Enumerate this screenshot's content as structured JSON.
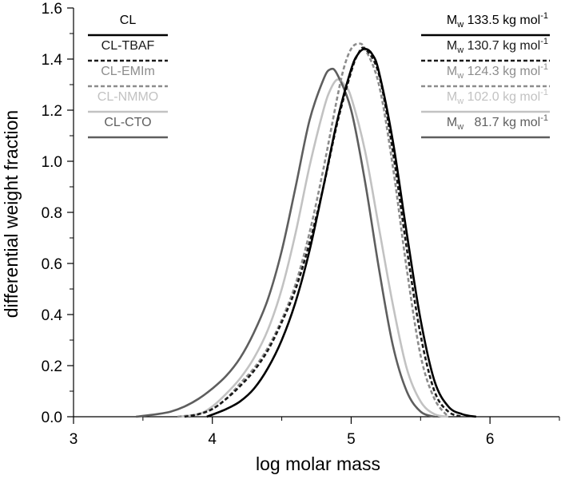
{
  "chart_data": {
    "type": "line",
    "title": "",
    "xlabel": "log molar mass",
    "ylabel": "differential weight fraction",
    "xlim": [
      3,
      6.5
    ],
    "ylim": [
      0,
      1.6
    ],
    "x_ticks": [
      3,
      4,
      5,
      6
    ],
    "x_tick_labels": [
      "3",
      "4",
      "5",
      "6"
    ],
    "y_ticks": [
      0,
      0.2,
      0.4,
      0.6,
      0.8,
      1.0,
      1.2,
      1.4,
      1.6
    ],
    "y_tick_labels": [
      "0.0",
      "0.2",
      "0.4",
      "0.6",
      "0.8",
      "1.0",
      "1.2",
      "1.4",
      "1.6"
    ],
    "grid": false,
    "legend_position": "top-left and top-right",
    "series": [
      {
        "name": "CL",
        "mw_label": "Mw 133.5 kg mol-1",
        "mw_value": "133.5",
        "color": "#000000",
        "dash": "solid",
        "x": [
          3.96,
          4.1,
          4.2,
          4.3,
          4.4,
          4.5,
          4.6,
          4.7,
          4.8,
          4.9,
          5.0,
          5.05,
          5.1,
          5.15,
          5.2,
          5.3,
          5.4,
          5.5,
          5.6,
          5.7,
          5.8,
          5.9
        ],
        "y": [
          0.0,
          0.03,
          0.06,
          0.11,
          0.19,
          0.3,
          0.45,
          0.65,
          0.9,
          1.16,
          1.36,
          1.42,
          1.44,
          1.42,
          1.35,
          1.08,
          0.72,
          0.38,
          0.14,
          0.04,
          0.01,
          0.0
        ]
      },
      {
        "name": "CL-TBAF",
        "mw_label": "Mw 130.7 kg mol-1",
        "mw_value": "130.7",
        "color": "#1a1a1a",
        "dash": "dashed",
        "x": [
          3.8,
          3.9,
          4.0,
          4.1,
          4.2,
          4.3,
          4.4,
          4.5,
          4.6,
          4.7,
          4.8,
          4.9,
          5.0,
          5.05,
          5.1,
          5.2,
          5.3,
          5.4,
          5.5,
          5.6,
          5.7,
          5.8
        ],
        "y": [
          0.0,
          0.01,
          0.03,
          0.07,
          0.12,
          0.18,
          0.26,
          0.37,
          0.5,
          0.68,
          0.9,
          1.15,
          1.35,
          1.42,
          1.44,
          1.34,
          1.04,
          0.66,
          0.32,
          0.1,
          0.02,
          0.0
        ]
      },
      {
        "name": "CL-EMIm",
        "mw_label": "Mw 124.3 kg mol-1",
        "mw_value": "124.3",
        "color": "#8c8c8c",
        "dash": "dashed",
        "x": [
          3.75,
          3.9,
          4.0,
          4.1,
          4.2,
          4.3,
          4.4,
          4.5,
          4.6,
          4.7,
          4.8,
          4.9,
          4.95,
          5.0,
          5.05,
          5.1,
          5.2,
          5.3,
          5.4,
          5.5,
          5.6,
          5.7
        ],
        "y": [
          0.0,
          0.01,
          0.03,
          0.07,
          0.13,
          0.19,
          0.27,
          0.38,
          0.52,
          0.72,
          0.97,
          1.25,
          1.37,
          1.44,
          1.46,
          1.44,
          1.3,
          0.98,
          0.58,
          0.24,
          0.07,
          0.0
        ]
      },
      {
        "name": "CL-NMMO",
        "mw_label": "Mw 102.0 kg mol-1",
        "mw_value": "102.0",
        "color": "#c2c2c2",
        "dash": "solid",
        "x": [
          3.75,
          3.9,
          4.0,
          4.1,
          4.2,
          4.3,
          4.4,
          4.5,
          4.6,
          4.7,
          4.8,
          4.85,
          4.9,
          4.95,
          5.0,
          5.1,
          5.2,
          5.3,
          5.4,
          5.5,
          5.6,
          5.7
        ],
        "y": [
          0.0,
          0.01,
          0.04,
          0.09,
          0.15,
          0.23,
          0.34,
          0.5,
          0.72,
          0.98,
          1.2,
          1.28,
          1.32,
          1.3,
          1.25,
          1.04,
          0.74,
          0.44,
          0.19,
          0.06,
          0.01,
          0.0
        ]
      },
      {
        "name": "CL-CTO",
        "mw_label": "Mw 81.7 kg mol-1",
        "mw_value": "81.7",
        "color": "#5e5e5e",
        "dash": "solid",
        "x": [
          3.45,
          3.6,
          3.7,
          3.8,
          3.9,
          4.0,
          4.1,
          4.2,
          4.3,
          4.4,
          4.5,
          4.6,
          4.7,
          4.8,
          4.85,
          4.9,
          5.0,
          5.1,
          5.2,
          5.3,
          5.4,
          5.5,
          5.6
        ],
        "y": [
          0.0,
          0.01,
          0.02,
          0.04,
          0.07,
          0.11,
          0.16,
          0.23,
          0.33,
          0.46,
          0.65,
          0.9,
          1.16,
          1.32,
          1.36,
          1.34,
          1.2,
          0.92,
          0.58,
          0.28,
          0.1,
          0.02,
          0.0
        ]
      }
    ]
  }
}
